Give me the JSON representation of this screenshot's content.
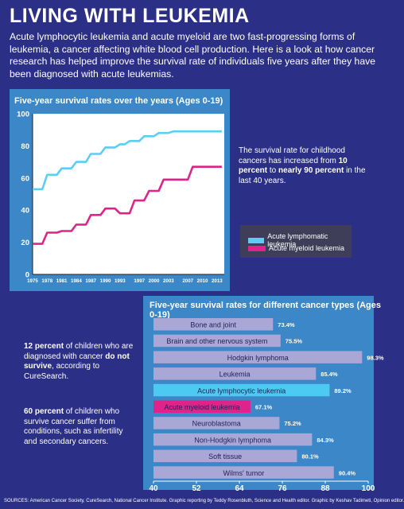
{
  "header": {
    "title": "LIVING WITH LEUKEMIA",
    "intro": "Acute lymphocytic leukemia and acute myeloid are two fast-progressing forms of leukemia, a cancer affecting white blood cell production. Here is a look at how cancer research has helped improve the survival rate of individuals five years after they have been diagnosed with acute leukemias."
  },
  "notes": {
    "survival": {
      "p1": "The survival rate for childhood cancers has increased from ",
      "b1": "10 percent",
      "p2": " to ",
      "b2": "nearly 90 percent",
      "p3": " in the last 40 years."
    },
    "not_survive": {
      "b1": "12 percent",
      "p1": " of children who are diagnosed with cancer ",
      "b2": "do not survive",
      "p2": ", according to CureSearch."
    },
    "conditions": {
      "b1": "60 percent",
      "p1": " of children who survive cancer suffer from conditions, such as infertility and secondary cancers."
    }
  },
  "sources": "SOURCES: American Cancer Society, CureSearch, National Cancer Institute. Graphic reporting by Teddy Rosenbluth, Science and Health editor. Graphic by Keshav Tadimeti, Opinion editor.",
  "colors": {
    "background": "#2b2f86",
    "panel": "#3b87c8",
    "lymph_line": "#5ccdf3",
    "myeloid_line": "#e0238a",
    "bar_default": "#a9a7d6",
    "bar_lymph": "#4ccaf1",
    "bar_myeloid": "#e0238a"
  },
  "chart_data": [
    {
      "type": "line",
      "title": "Five-year survival rates over the years (Ages 0-19)",
      "x_ticks": [
        "1975",
        "1978",
        "1981",
        "1984",
        "1987",
        "1990",
        "1993",
        "1997",
        "2000",
        "2003",
        "2007",
        "2010",
        "2013"
      ],
      "y_ticks": [
        "0",
        "20",
        "40",
        "60",
        "80",
        "100"
      ],
      "xlim": [
        1975,
        2014.5
      ],
      "ylim": [
        0,
        100
      ],
      "legend_position": "right",
      "series": [
        {
          "name": "Acute lymphomatic leukemia",
          "x": [
            1975,
            1976,
            1977,
            1978,
            1979,
            1980,
            1981,
            1982,
            1983,
            1984,
            1985,
            1986,
            1987,
            1988,
            1989,
            1990,
            1991,
            1992,
            1993,
            1994,
            1995,
            1996,
            1997,
            1998,
            1999,
            2000,
            2001,
            2002,
            2003,
            2004,
            2005,
            2006,
            2007,
            2008,
            2009,
            2010,
            2011,
            2012,
            2013,
            2014
          ],
          "y": [
            53,
            53,
            53,
            62,
            62,
            62,
            66,
            66,
            66,
            70,
            70,
            70,
            75,
            75,
            75,
            79,
            79,
            79,
            81,
            81,
            83,
            83,
            83,
            86,
            86,
            86,
            88,
            88,
            88,
            89,
            89,
            89,
            89,
            89,
            89,
            89,
            89,
            89,
            89,
            89
          ]
        },
        {
          "name": "Acute myeloid leukemia",
          "x": [
            1975,
            1976,
            1977,
            1978,
            1979,
            1980,
            1981,
            1982,
            1983,
            1984,
            1985,
            1986,
            1987,
            1988,
            1989,
            1990,
            1991,
            1992,
            1993,
            1994,
            1995,
            1996,
            1997,
            1998,
            1999,
            2000,
            2001,
            2002,
            2003,
            2004,
            2005,
            2006,
            2007,
            2008,
            2009,
            2010,
            2011,
            2012,
            2013,
            2014
          ],
          "y": [
            19,
            19,
            19,
            26,
            26,
            26,
            27,
            27,
            27,
            31,
            31,
            31,
            37,
            37,
            37,
            41,
            41,
            41,
            38,
            38,
            38,
            46,
            46,
            46,
            52,
            52,
            52,
            59,
            59,
            59,
            59,
            59,
            59,
            67,
            67,
            67,
            67,
            67,
            67,
            67
          ]
        }
      ]
    },
    {
      "type": "bar",
      "orientation": "horizontal",
      "title": "Five-year survival rates for different cancer types (Ages 0-19)",
      "categories": [
        "Bone and joint",
        "Brain and other nervous system",
        "Hodgkin lymphoma",
        "Leukemia",
        "Acute lymphocytic leukemia",
        "Acute myeloid leukemia",
        "Neuroblastoma",
        "Non-Hodgkin lymphoma",
        "Soft tissue",
        "Wilms' tumor"
      ],
      "values": [
        73.4,
        75.5,
        98.3,
        85.4,
        89.2,
        67.1,
        75.2,
        84.3,
        80.1,
        90.4
      ],
      "value_labels": [
        "73.4%",
        "75.5%",
        "98.3%",
        "85.4%",
        "89.2%",
        "67.1%",
        "75.2%",
        "84.3%",
        "80.1%",
        "90.4%"
      ],
      "highlight": [
        "none",
        "none",
        "none",
        "none",
        "lymph",
        "myeloid",
        "none",
        "none",
        "none",
        "none"
      ],
      "x_ticks": [
        "40",
        "52",
        "64",
        "76",
        "88",
        "100"
      ],
      "xlim": [
        40,
        100
      ]
    }
  ]
}
